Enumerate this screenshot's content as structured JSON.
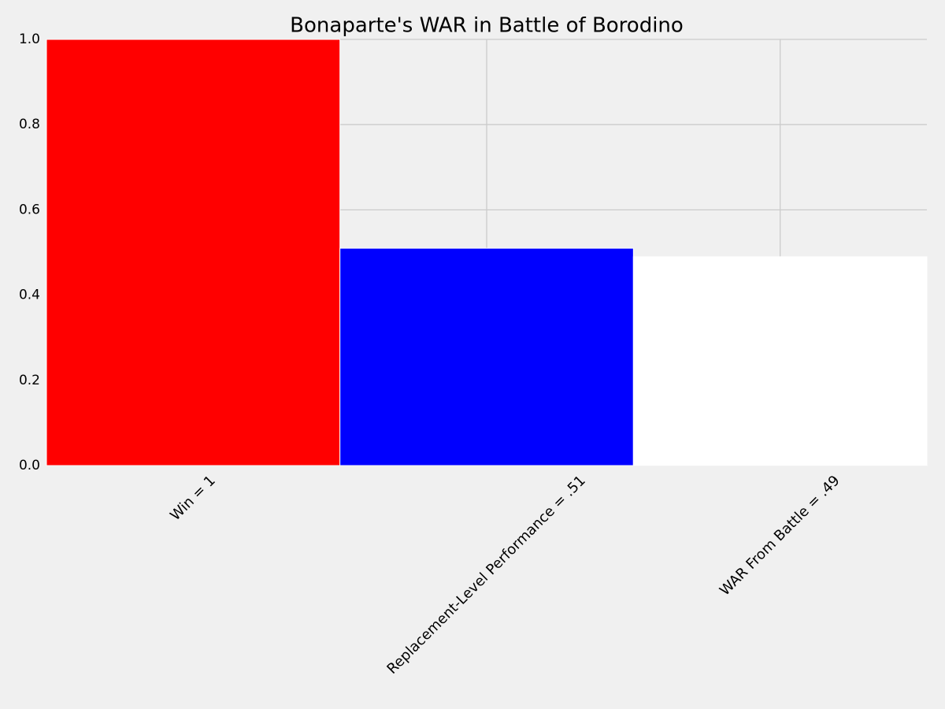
{
  "chart_data": {
    "type": "bar",
    "title": "Bonaparte's WAR in Battle of Borodino",
    "categories": [
      "Win = 1",
      "Replacement-Level Performance = .51",
      "WAR From Battle = .49"
    ],
    "values": [
      1,
      0.51,
      0.49
    ],
    "colors": [
      "#ff0000",
      "#0000ff",
      "#ffffff"
    ],
    "ylim": [
      0,
      1
    ],
    "yticks": [
      {
        "value": 0,
        "label": "0.0"
      },
      0.2,
      0.4,
      0.6,
      0.8,
      {
        "value": 1,
        "label": "1.0"
      }
    ],
    "grid": true
  }
}
